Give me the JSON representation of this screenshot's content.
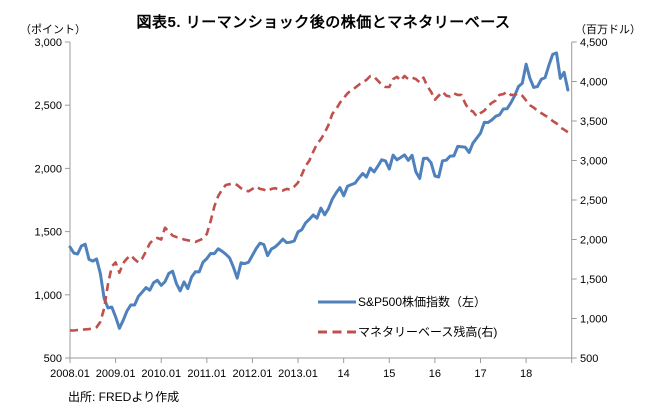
{
  "title": "図表5. リーマンショック後の株価とマネタリーベース",
  "source_note": "出所: FREDより作成",
  "left_axis": {
    "unit_label": "（ポイント）",
    "tick_labels": [
      "500",
      "1,000",
      "1,500",
      "2,000",
      "2,500",
      "3,000"
    ]
  },
  "right_axis": {
    "unit_label": "（百万ドル）",
    "tick_labels": [
      "500",
      "1,000",
      "1,500",
      "2,000",
      "2,500",
      "3,000",
      "3,500",
      "4,000",
      "4,500"
    ]
  },
  "x_axis": {
    "tick_labels": [
      "2008.01",
      "2009.01",
      "2010.01",
      "2011.01",
      "2012.01",
      "2013.01",
      "14",
      "15",
      "16",
      "17",
      "18"
    ]
  },
  "legend": {
    "items": [
      {
        "label": "S&P500株価指数（左）",
        "color": "#4F81BD",
        "line_style": "solid"
      },
      {
        "label": "マネタリーベース残高(右)",
        "color": "#C0504D",
        "line_style": "dashed"
      }
    ]
  },
  "colors": {
    "axis": "#9B9B9B",
    "sp500": "#4F81BD",
    "monetary_base": "#C0504D",
    "text": "#000000"
  },
  "chart_data": {
    "type": "line",
    "x": {
      "start": "2008-01",
      "end": "2018-12",
      "interval": "monthly",
      "tick_labels": [
        "2008.01",
        "2009.01",
        "2010.01",
        "2011.01",
        "2012.01",
        "2013.01",
        "14",
        "15",
        "16",
        "17",
        "18"
      ]
    },
    "left_ylim": [
      500,
      3000
    ],
    "right_ylim": [
      500,
      4500
    ],
    "grid": false,
    "legend_position": "inside-lower-right",
    "series": [
      {
        "name": "S&P500株価指数（左）",
        "axis": "left",
        "color": "#4F81BD",
        "style": "solid",
        "values": [
          1378,
          1331,
          1323,
          1386,
          1400,
          1280,
          1267,
          1283,
          1166,
          969,
          896,
          903,
          826,
          735,
          798,
          873,
          919,
          919,
          987,
          1021,
          1057,
          1036,
          1096,
          1115,
          1074,
          1104,
          1169,
          1187,
          1089,
          1031,
          1102,
          1049,
          1141,
          1183,
          1181,
          1258,
          1286,
          1327,
          1326,
          1364,
          1345,
          1321,
          1292,
          1219,
          1131,
          1253,
          1247,
          1258,
          1312,
          1366,
          1408,
          1398,
          1310,
          1362,
          1379,
          1407,
          1441,
          1412,
          1416,
          1426,
          1498,
          1515,
          1569,
          1598,
          1631,
          1606,
          1686,
          1633,
          1682,
          1757,
          1806,
          1848,
          1783,
          1859,
          1872,
          1884,
          1924,
          1960,
          1931,
          2003,
          1972,
          2018,
          2068,
          2059,
          1995,
          2105,
          2068,
          2086,
          2107,
          2063,
          2104,
          1972,
          1920,
          2079,
          2080,
          2044,
          1940,
          1932,
          2060,
          2065,
          2097,
          2099,
          2174,
          2171,
          2168,
          2126,
          2199,
          2239,
          2279,
          2364,
          2363,
          2384,
          2412,
          2423,
          2470,
          2472,
          2519,
          2575,
          2648,
          2674,
          2824,
          2714,
          2641,
          2648,
          2705,
          2718,
          2816,
          2902,
          2914,
          2712,
          2760,
          2620
        ]
      },
      {
        "name": "マネタリーベース残高(右)",
        "axis": "right",
        "color": "#C0504D",
        "style": "dashed",
        "values": [
          850,
          848,
          855,
          858,
          862,
          866,
          872,
          890,
          960,
          1130,
          1435,
          1660,
          1710,
          1580,
          1700,
          1760,
          1800,
          1750,
          1710,
          1760,
          1850,
          1950,
          2000,
          2020,
          2000,
          2150,
          2100,
          2050,
          2030,
          2020,
          2000,
          1990,
          1980,
          1970,
          1990,
          2010,
          2070,
          2230,
          2420,
          2550,
          2630,
          2690,
          2700,
          2710,
          2690,
          2650,
          2620,
          2610,
          2640,
          2670,
          2640,
          2630,
          2610,
          2640,
          2650,
          2630,
          2620,
          2640,
          2630,
          2670,
          2720,
          2820,
          2930,
          3000,
          3110,
          3210,
          3270,
          3350,
          3450,
          3590,
          3650,
          3730,
          3790,
          3850,
          3890,
          3920,
          3960,
          3990,
          4020,
          4070,
          4060,
          4010,
          3960,
          3930,
          3930,
          4030,
          4060,
          4010,
          4070,
          4030,
          4050,
          4030,
          3990,
          4050,
          3940,
          3870,
          3770,
          3820,
          3870,
          3820,
          3810,
          3850,
          3830,
          3830,
          3720,
          3640,
          3620,
          3560,
          3600,
          3630,
          3690,
          3730,
          3760,
          3830,
          3840,
          3870,
          3830,
          3830,
          3850,
          3820,
          3760,
          3700,
          3670,
          3630,
          3600,
          3570,
          3540,
          3500,
          3470,
          3420,
          3390,
          3360
        ]
      }
    ]
  }
}
